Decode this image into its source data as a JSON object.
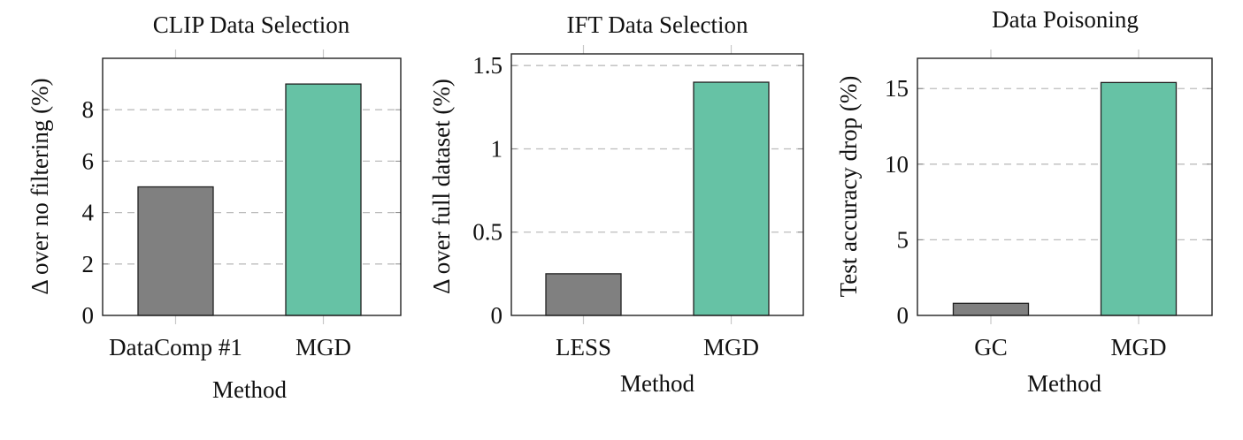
{
  "chart_data": [
    {
      "type": "bar",
      "title": "CLIP Data Selection",
      "xlabel": "Method",
      "ylabel": "Δ over no filtering (%)",
      "categories": [
        "DataComp #1",
        "MGD"
      ],
      "values": [
        5,
        9
      ],
      "ylim": [
        0,
        10
      ],
      "yticks": [
        0,
        2,
        4,
        6,
        8
      ],
      "ytick_labels": [
        "0",
        "2",
        "4",
        "6",
        "8"
      ],
      "grid": "y-dashed",
      "colors": [
        "#808080",
        "#66c2a5"
      ]
    },
    {
      "type": "bar",
      "title": "IFT Data Selection",
      "xlabel": "Method",
      "ylabel": "Δ over full dataset (%)",
      "categories": [
        "LESS",
        "MGD"
      ],
      "values": [
        0.25,
        1.4
      ],
      "ylim": [
        0,
        1.57
      ],
      "yticks": [
        0,
        0.5,
        1,
        1.5
      ],
      "ytick_labels": [
        "0",
        "0.5",
        "1",
        "1.5"
      ],
      "grid": "y-dashed",
      "colors": [
        "#808080",
        "#66c2a5"
      ]
    },
    {
      "type": "bar",
      "title": "Data Poisoning",
      "xlabel": "Method",
      "ylabel": "Test accuracy drop (%)",
      "categories": [
        "GC",
        "MGD"
      ],
      "values": [
        0.8,
        15.4
      ],
      "ylim": [
        0,
        17
      ],
      "yticks": [
        0,
        5,
        10,
        15
      ],
      "ytick_labels": [
        "0",
        "5",
        "10",
        "15"
      ],
      "grid": "y-dashed",
      "colors": [
        "#808080",
        "#66c2a5"
      ]
    }
  ]
}
